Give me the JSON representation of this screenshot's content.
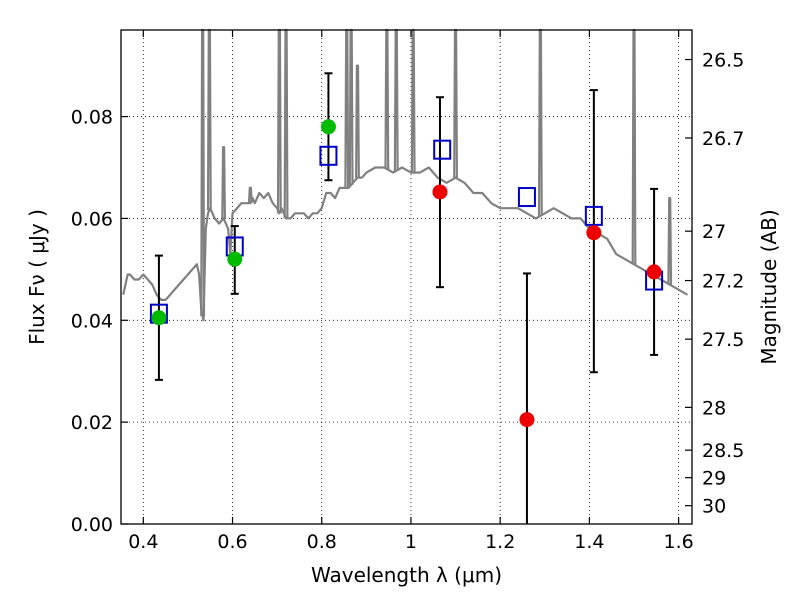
{
  "chart_data": {
    "type": "scatter",
    "xlabel": "Wavelength  λ (μm)",
    "ylabel": "Flux  Fν  ( μJy )",
    "ylabel_right": "Magnitude (AB)",
    "xlim": [
      0.35,
      1.63
    ],
    "ylim": [
      0.0,
      0.097
    ],
    "grid": true,
    "x_ticks": [
      0.4,
      0.6,
      0.8,
      1.0,
      1.2,
      1.4,
      1.6
    ],
    "x_tick_labels": [
      "0.4",
      "0.6",
      "0.8",
      "1",
      "1.2",
      "1.4",
      "1.6"
    ],
    "y_ticks": [
      0.0,
      0.02,
      0.04,
      0.06,
      0.08
    ],
    "y_tick_labels": [
      "0.00",
      "0.02",
      "0.04",
      "0.06",
      "0.08"
    ],
    "right_ticks": [
      {
        "label": "26.5",
        "flux": 0.0912
      },
      {
        "label": "26.7",
        "flux": 0.0758
      },
      {
        "label": "27",
        "flux": 0.0575
      },
      {
        "label": "27.2",
        "flux": 0.0478
      },
      {
        "label": "27.5",
        "flux": 0.0363
      },
      {
        "label": "28",
        "flux": 0.0229
      },
      {
        "label": "28.5",
        "flux": 0.0145
      },
      {
        "label": "29",
        "flux": 0.0091
      },
      {
        "label": "30",
        "flux": 0.0036
      }
    ],
    "series": [
      {
        "kind": "model_spectrum",
        "color": "#808080",
        "x": [
          0.355,
          0.365,
          0.37,
          0.38,
          0.39,
          0.4,
          0.41,
          0.42,
          0.43,
          0.44,
          0.45,
          0.46,
          0.47,
          0.48,
          0.49,
          0.5,
          0.51,
          0.52,
          0.525,
          0.53,
          0.535,
          0.54,
          0.545,
          0.55,
          0.56,
          0.57,
          0.58,
          0.59,
          0.595,
          0.6,
          0.61,
          0.62,
          0.63,
          0.64,
          0.645,
          0.65,
          0.66,
          0.67,
          0.68,
          0.69,
          0.7,
          0.705,
          0.71,
          0.72,
          0.73,
          0.74,
          0.75,
          0.76,
          0.77,
          0.78,
          0.79,
          0.8,
          0.81,
          0.82,
          0.83,
          0.84,
          0.85,
          0.86,
          0.87,
          0.88,
          0.89,
          0.9,
          0.92,
          0.94,
          0.96,
          0.98,
          1.0,
          1.02,
          1.04,
          1.06,
          1.08,
          1.1,
          1.12,
          1.14,
          1.16,
          1.18,
          1.2,
          1.22,
          1.24,
          1.26,
          1.28,
          1.3,
          1.32,
          1.34,
          1.36,
          1.38,
          1.4,
          1.42,
          1.44,
          1.46,
          1.48,
          1.5,
          1.52,
          1.54,
          1.56,
          1.58,
          1.6,
          1.62
        ],
        "y": [
          0.045,
          0.049,
          0.049,
          0.048,
          0.048,
          0.049,
          0.048,
          0.047,
          0.045,
          0.044,
          0.044,
          0.045,
          0.046,
          0.047,
          0.048,
          0.049,
          0.05,
          0.051,
          0.049,
          0.042,
          0.04,
          0.058,
          0.061,
          0.062,
          0.06,
          0.059,
          0.06,
          0.058,
          0.053,
          0.061,
          0.062,
          0.063,
          0.063,
          0.063,
          0.064,
          0.063,
          0.065,
          0.064,
          0.065,
          0.063,
          0.062,
          0.061,
          0.062,
          0.06,
          0.06,
          0.061,
          0.061,
          0.061,
          0.06,
          0.061,
          0.061,
          0.062,
          0.065,
          0.065,
          0.064,
          0.066,
          0.066,
          0.066,
          0.067,
          0.068,
          0.068,
          0.069,
          0.07,
          0.07,
          0.069,
          0.07,
          0.069,
          0.069,
          0.07,
          0.068,
          0.067,
          0.068,
          0.067,
          0.065,
          0.065,
          0.063,
          0.062,
          0.062,
          0.062,
          0.061,
          0.06,
          0.061,
          0.062,
          0.061,
          0.06,
          0.06,
          0.058,
          0.057,
          0.056,
          0.053,
          0.052,
          0.051,
          0.05,
          0.049,
          0.048,
          0.047,
          0.046,
          0.045
        ]
      },
      {
        "kind": "emission_lines",
        "color": "#808080",
        "x": [
          0.533,
          0.548,
          0.58,
          0.64,
          0.705,
          0.72,
          0.856,
          0.866,
          0.88,
          0.946,
          0.967,
          1.005,
          1.1,
          1.29,
          1.5,
          1.58
        ],
        "peak": [
          0.097,
          0.097,
          0.074,
          0.066,
          0.097,
          0.097,
          0.097,
          0.097,
          0.09,
          0.097,
          0.097,
          0.097,
          0.097,
          0.097,
          0.097,
          0.064
        ]
      },
      {
        "kind": "model_photometry",
        "marker": "open-square",
        "color": "#0000cc",
        "x": [
          0.435,
          0.605,
          0.815,
          1.07,
          1.26,
          1.41,
          1.545
        ],
        "y": [
          0.0413,
          0.0545,
          0.0723,
          0.0735,
          0.0642,
          0.0605,
          0.0478
        ]
      },
      {
        "kind": "observed",
        "marker": "filled-circle",
        "color": "#00bb00",
        "x": [
          0.435,
          0.605,
          0.815
        ],
        "y": [
          0.0405,
          0.052,
          0.078
        ],
        "yerr_low": [
          0.0283,
          0.0452,
          0.0675
        ],
        "yerr_high": [
          0.0527,
          0.0585,
          0.0885
        ]
      },
      {
        "kind": "observed",
        "marker": "filled-circle",
        "color": "#ee0000",
        "x": [
          1.065,
          1.26,
          1.41,
          1.545
        ],
        "y": [
          0.0652,
          0.0205,
          0.0572,
          0.0495
        ],
        "yerr_low": [
          0.0465,
          0.0,
          0.0298,
          0.0332
        ],
        "yerr_high": [
          0.0838,
          0.0492,
          0.0852,
          0.0658
        ]
      }
    ]
  }
}
